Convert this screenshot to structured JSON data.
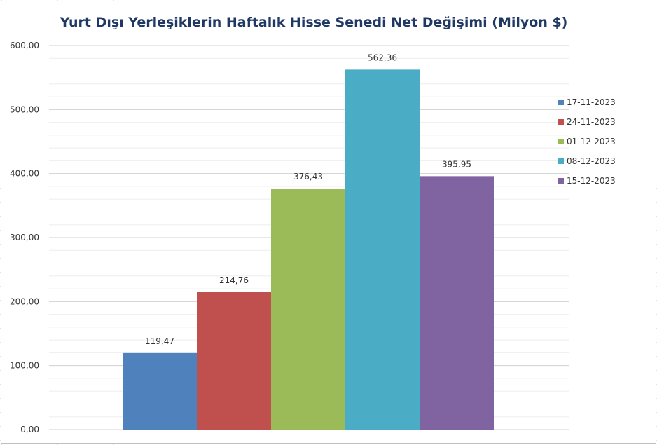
{
  "chart_data": {
    "type": "bar",
    "title": "Yurt Dışı Yerleşiklerin Haftalık Hisse Senedi Net Değişimi (Milyon $)",
    "xlabel": "",
    "ylabel": "",
    "ylim": [
      0,
      600
    ],
    "yticks": [
      "0,00",
      "100,00",
      "200,00",
      "300,00",
      "400,00",
      "500,00",
      "600,00"
    ],
    "grid": true,
    "legend_position": "right",
    "series": [
      {
        "name": "17-11-2023",
        "value": 119.47,
        "label": "119,47",
        "color": "#4f81bd"
      },
      {
        "name": "24-11-2023",
        "value": 214.76,
        "label": "214,76",
        "color": "#c0504d"
      },
      {
        "name": "01-12-2023",
        "value": 376.43,
        "label": "376,43",
        "color": "#9bbb59"
      },
      {
        "name": "08-12-2023",
        "value": 562.36,
        "label": "562,36",
        "color": "#4bacc6"
      },
      {
        "name": "15-12-2023",
        "value": 395.95,
        "label": "395,95",
        "color": "#8064a2"
      }
    ]
  }
}
